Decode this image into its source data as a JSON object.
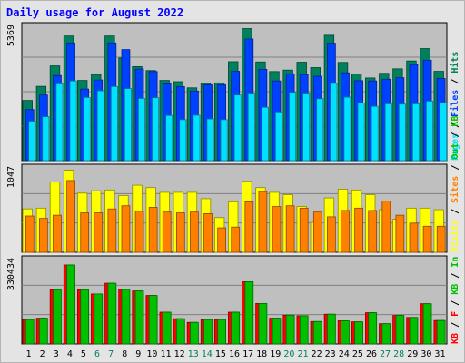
{
  "colors": {
    "background": "#e4e4e4",
    "plot": "#bfbfbf",
    "title": "#0000ff",
    "hits": "#00805c",
    "files": "#0040ff",
    "pages": "#00e0ff",
    "visits": "#ffff00",
    "sites": "#ff8000",
    "kb_in": "#00c000",
    "kb_out": "#ff0000",
    "weekday_label": "#000000",
    "weekend_label": "#00805c"
  },
  "chart_data": {
    "title": "Daily usage for August 2022",
    "type": "bar",
    "categories": [
      "1",
      "2",
      "3",
      "4",
      "5",
      "6",
      "7",
      "8",
      "9",
      "10",
      "11",
      "12",
      "13",
      "14",
      "15",
      "16",
      "17",
      "18",
      "19",
      "20",
      "21",
      "22",
      "23",
      "24",
      "25",
      "26",
      "27",
      "28",
      "29",
      "30",
      "31"
    ],
    "weekend_days": [
      "6",
      "7",
      "13",
      "14",
      "20",
      "21",
      "27",
      "28"
    ],
    "panels": [
      {
        "name": "top",
        "ymax_label": "5369",
        "ymax": 5369,
        "legend": [
          "Pages",
          "Files",
          "Hits"
        ],
        "legend_separator": " / ",
        "series": [
          {
            "name": "Hits",
            "values": [
              2440,
              3010,
              3840,
              5050,
              3250,
              3490,
              5050,
              4160,
              3810,
              3650,
              3250,
              3200,
              2950,
              3130,
              3150,
              4010,
              5350,
              4000,
              3610,
              3670,
              3990,
              3770,
              5080,
              3980,
              3510,
              3350,
              3540,
              3720,
              4040,
              4540,
              3620
            ]
          },
          {
            "name": "Files",
            "values": [
              2070,
              2660,
              3450,
              4770,
              2900,
              3270,
              4770,
              4500,
              3710,
              3610,
              3110,
              3000,
              2820,
              3070,
              3070,
              3620,
              4930,
              3700,
              3230,
              3520,
              3480,
              3420,
              4760,
              3560,
              3240,
              3230,
              3300,
              3360,
              3890,
              4070,
              3330
            ]
          },
          {
            "name": "Pages",
            "values": [
              1600,
              1780,
              3110,
              3230,
              2560,
              2830,
              3000,
              2920,
              2520,
              2550,
              1830,
              1660,
              1840,
              1690,
              1660,
              2660,
              2700,
              2160,
              1970,
              2760,
              2700,
              2510,
              3130,
              2570,
              2340,
              2200,
              2300,
              2290,
              2300,
              2410,
              2350
            ]
          }
        ]
      },
      {
        "name": "middle",
        "ymax_label": "1047",
        "ymax": 1047,
        "legend": [
          "Visits",
          "Sites",
          "Out",
          "KB"
        ],
        "legend_separator": " / ",
        "series": [
          {
            "name": "Visits",
            "values": [
              550,
              560,
              890,
              1040,
              750,
              780,
              790,
              720,
              850,
              820,
              760,
              760,
              760,
              680,
              440,
              640,
              900,
              820,
              760,
              730,
              580,
              380,
              690,
              800,
              790,
              730,
              540,
              420,
              560,
              560,
              540
            ]
          },
          {
            "name": "Sites",
            "values": [
              460,
              430,
              470,
              910,
              500,
              500,
              550,
              590,
              520,
              570,
              510,
              500,
              510,
              490,
              310,
              320,
              640,
              770,
              580,
              590,
              560,
              510,
              450,
              530,
              560,
              530,
              650,
              470,
              370,
              330,
              330
            ]
          }
        ]
      },
      {
        "name": "bottom",
        "ymax_label": "330434",
        "ymax": 330434,
        "legend": [
          "KB",
          "F",
          "KB",
          "In"
        ],
        "legend_separator": " / ",
        "series": [
          {
            "name": "KB F",
            "values": [
              97800,
              103000,
              217000,
              316000,
              217000,
              200000,
              243000,
              218000,
              212000,
              194000,
              127000,
              101000,
              86300,
              97500,
              97800,
              127000,
              249000,
              162000,
              103000,
              115000,
              113000,
              89700,
              119000,
              92700,
              88500,
              125000,
              81000,
              114000,
              106000,
              161000,
              93800
            ]
          },
          {
            "name": "KB In",
            "values": [
              97800,
              103000,
              217000,
              316000,
              217000,
              200000,
              243000,
              218000,
              212000,
              194000,
              127000,
              101000,
              86300,
              97500,
              97800,
              127000,
              249000,
              162000,
              103000,
              115000,
              113000,
              89700,
              119000,
              92700,
              88500,
              125000,
              81000,
              114000,
              106000,
              161000,
              93800
            ]
          }
        ]
      }
    ]
  }
}
